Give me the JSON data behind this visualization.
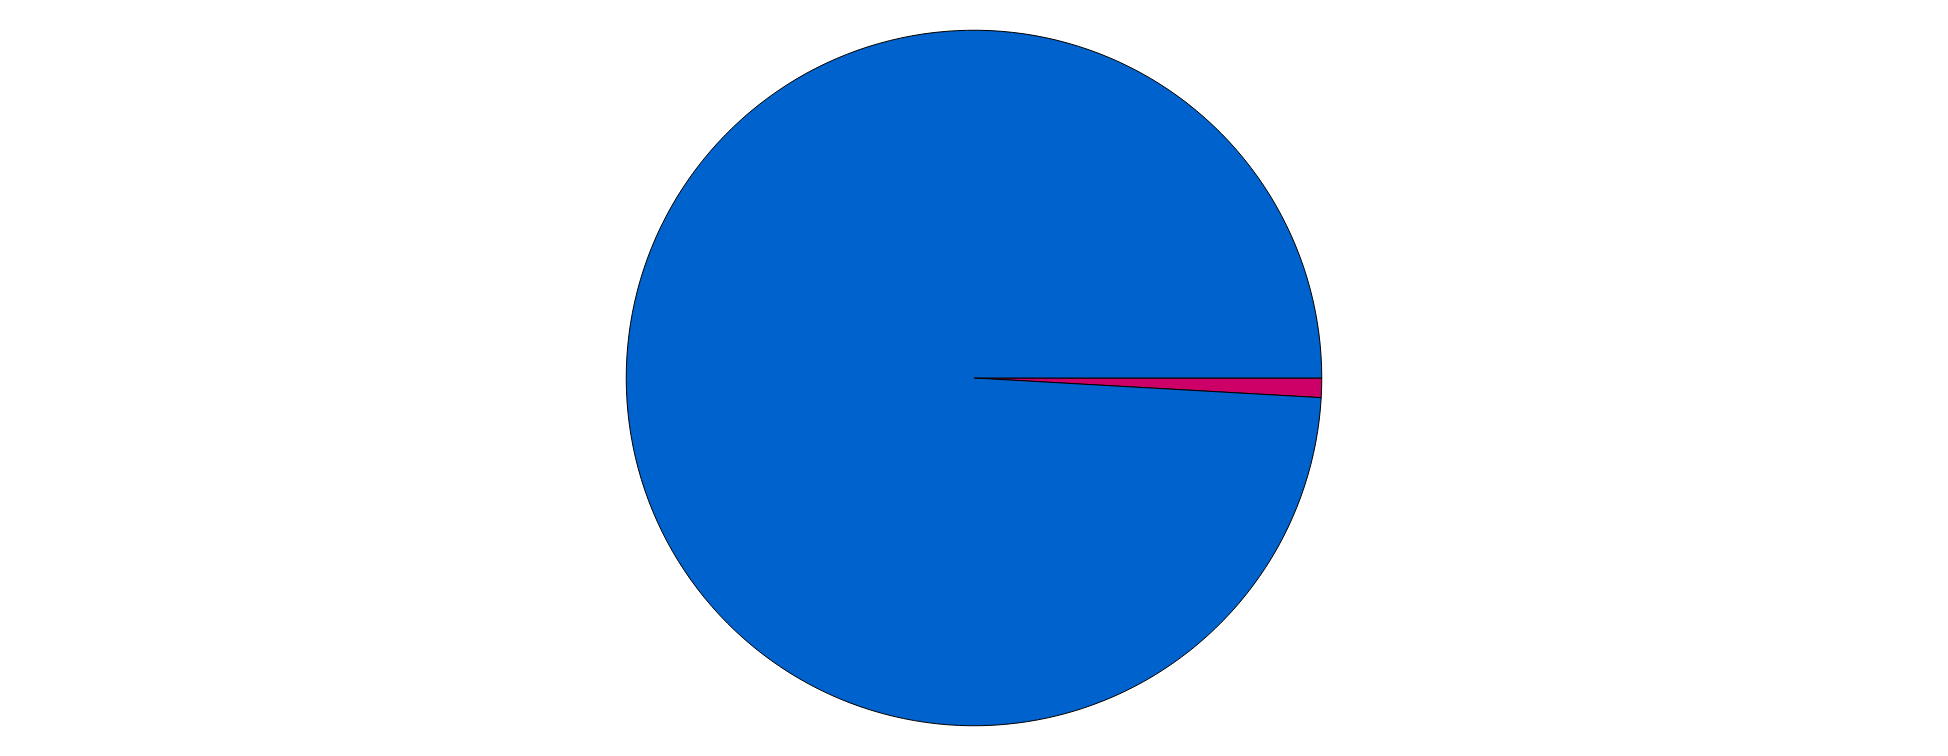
{
  "chart_data": {
    "type": "pie",
    "categories": [
      null,
      null
    ],
    "values": [
      0.9,
      99.1
    ],
    "colors": [
      "#cc0066",
      "#0062cc"
    ]
  }
}
